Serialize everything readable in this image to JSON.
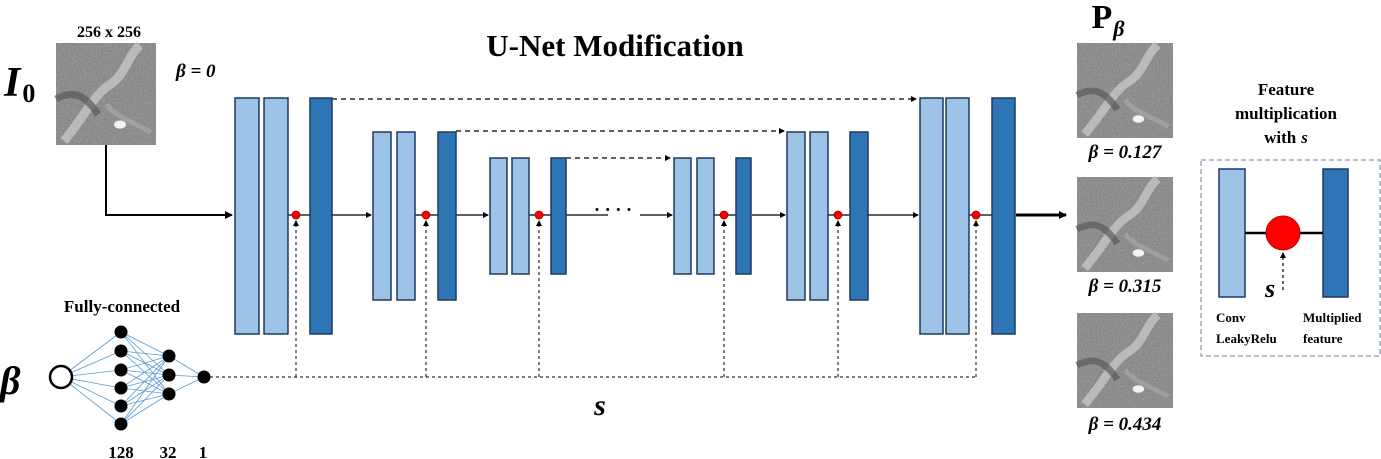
{
  "title": "U-Net Modification",
  "input": {
    "label": "I",
    "subscript": "0",
    "size_label": "256 x 256",
    "beta_zero": "β = 0"
  },
  "fc": {
    "title": "Fully-connected",
    "beta_symbol": "β",
    "layer_sizes": [
      "128",
      "32",
      "1"
    ]
  },
  "s_label": "s",
  "ellipsis": "····",
  "output": {
    "title": "P",
    "title_sub": "β",
    "results": [
      {
        "label": "β = 0.127"
      },
      {
        "label": "β = 0.315"
      },
      {
        "label": "β = 0.434"
      }
    ]
  },
  "legend": {
    "title_lines": [
      "Feature",
      "multiplication",
      "with"
    ],
    "title_var": "s",
    "s_label": "s",
    "left_caption_lines": [
      "Conv",
      "LeakyRelu"
    ],
    "right_caption_lines": [
      "Multiplied",
      "feature"
    ]
  },
  "colors": {
    "light_block": "#9dc3e6",
    "dark_block": "#2e75b6",
    "block_border": "#1f3864",
    "multiply_node": "#ff0000",
    "fc_edges": "#5b9bd5",
    "legend_border": "#8497b0"
  }
}
